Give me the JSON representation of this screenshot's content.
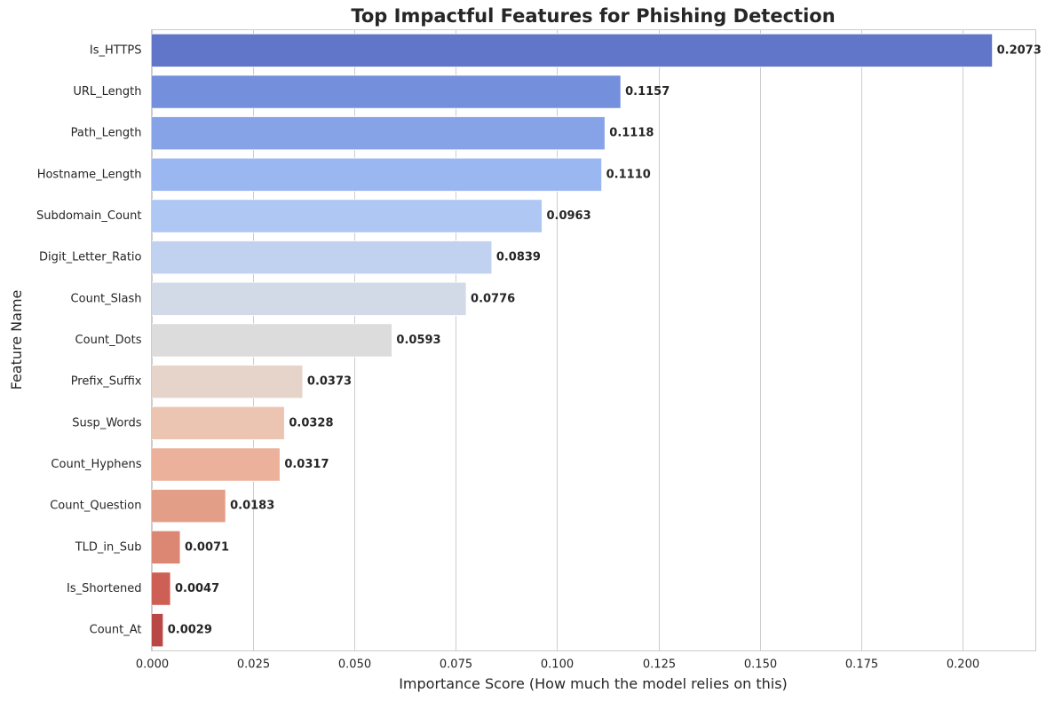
{
  "chart_data": {
    "type": "bar",
    "orientation": "horizontal",
    "title": "Top Impactful Features for Phishing Detection",
    "xlabel": "Importance Score (How much the model relies on this)",
    "ylabel": "Feature Name",
    "xlim": [
      0,
      0.218
    ],
    "xticks": [
      0.0,
      0.025,
      0.05,
      0.075,
      0.1,
      0.125,
      0.15,
      0.175,
      0.2
    ],
    "xtick_labels": [
      "0.000",
      "0.025",
      "0.050",
      "0.075",
      "0.100",
      "0.125",
      "0.150",
      "0.175",
      "0.200"
    ],
    "grid": true,
    "categories": [
      "Is_HTTPS",
      "URL_Length",
      "Path_Length",
      "Hostname_Length",
      "Subdomain_Count",
      "Digit_Letter_Ratio",
      "Count_Slash",
      "Count_Dots",
      "Prefix_Suffix",
      "Susp_Words",
      "Count_Hyphens",
      "Count_Question",
      "TLD_in_Sub",
      "Is_Shortened",
      "Count_At"
    ],
    "values": [
      0.2073,
      0.1157,
      0.1118,
      0.111,
      0.0963,
      0.0839,
      0.0776,
      0.0593,
      0.0373,
      0.0328,
      0.0317,
      0.0183,
      0.0071,
      0.0047,
      0.0029
    ],
    "value_labels": [
      "0.2073",
      "0.1157",
      "0.1118",
      "0.1110",
      "0.0963",
      "0.0839",
      "0.0776",
      "0.0593",
      "0.0373",
      "0.0328",
      "0.0317",
      "0.0183",
      "0.0071",
      "0.0047",
      "0.0029"
    ],
    "colors": [
      "#6176c9",
      "#748fdc",
      "#87a3e8",
      "#9bb7f2",
      "#afc7f3",
      "#c0d2f0",
      "#d1dae6",
      "#dcdcdc",
      "#e6d4ca",
      "#ecc5b2",
      "#ecb19a",
      "#e39e87",
      "#dc8773",
      "#cd5f55",
      "#b84745"
    ]
  }
}
